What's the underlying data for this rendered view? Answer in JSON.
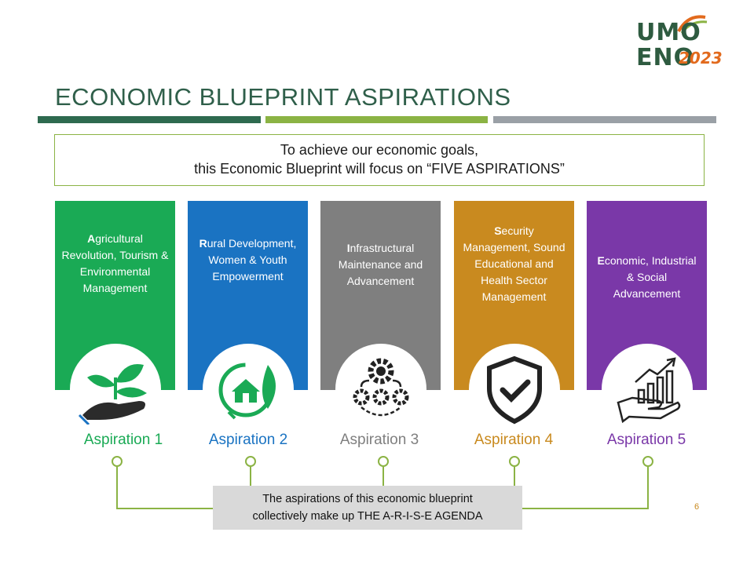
{
  "logo": {
    "line1": "UMO",
    "line2": "ENO",
    "year": "2023"
  },
  "title": "ECONOMIC BLUEPRINT ASPIRATIONS",
  "intro": {
    "line1": "To achieve our economic goals,",
    "line2": "this Economic Blueprint will focus on “FIVE ASPIRATIONS”"
  },
  "aspirations": [
    {
      "initial": "A",
      "rest": "gricultural Revolution, Tourism & Environmental Management",
      "label": "Aspiration 1",
      "color": "#1aaa55",
      "icon": "plant-in-hand-icon"
    },
    {
      "initial": "R",
      "rest": "ural Development, Women & Youth Empowerment",
      "label": "Aspiration 2",
      "color": "#1a73c2",
      "icon": "eco-house-icon"
    },
    {
      "initial": "I",
      "rest": "nfrastructural Maintenance and Advancement",
      "label": "Aspiration 3",
      "color": "#7f7f7f",
      "icon": "gears-icon"
    },
    {
      "initial": "S",
      "rest": "ecurity Management, Sound Educational and Health Sector Management",
      "label": "Aspiration 4",
      "color": "#c98a1f",
      "icon": "shield-check-icon"
    },
    {
      "initial": "E",
      "rest": "conomic, Industrial & Social Advancement",
      "label": "Aspiration 5",
      "color": "#7a38a8",
      "icon": "growth-chart-hand-icon"
    }
  ],
  "summary": {
    "line1": "The aspirations of this economic blueprint",
    "line2": "collectively make up THE  A-R-I-S-E AGENDA"
  },
  "page_number": "6"
}
